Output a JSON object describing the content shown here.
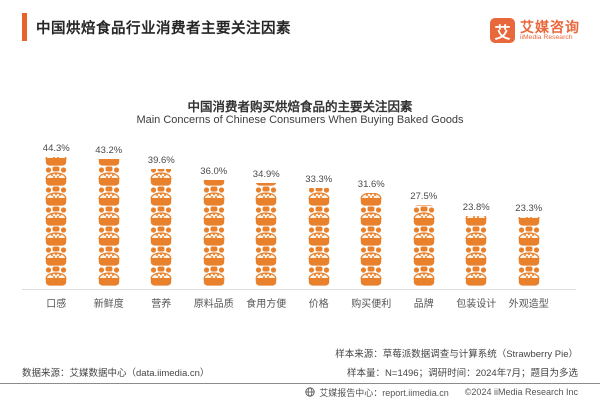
{
  "header": {
    "title": "中国烘焙食品行业消费者主要关注因素",
    "logo": {
      "glyph": "艾",
      "name_cn": "艾媒咨询",
      "name_en": "iiMedia Research"
    }
  },
  "chart_data": {
    "type": "bar",
    "style": "pictogram bar of stacked orange bread/bun icons",
    "title": "中国消费者购买烘焙食品的主要关注因素",
    "subtitle": "Main Concerns of Chinese Consumers When Buying Baked Goods",
    "categories": [
      "口感",
      "新鲜度",
      "营养",
      "原料品质",
      "食用方便",
      "价格",
      "购买便利",
      "品牌",
      "包装设计",
      "外观造型"
    ],
    "slugs": [
      "taste",
      "freshness",
      "nutrition",
      "ingredient-quality",
      "eating-convenience",
      "price",
      "purchase-convenience",
      "brand",
      "packaging-design",
      "appearance"
    ],
    "values": [
      44.3,
      43.2,
      39.6,
      36.0,
      34.9,
      33.3,
      31.6,
      27.5,
      23.8,
      23.3
    ],
    "value_labels": [
      "44.3%",
      "43.2%",
      "39.6%",
      "36.0%",
      "34.9%",
      "33.3%",
      "31.6%",
      "27.5%",
      "23.8%",
      "23.3%"
    ],
    "unit": "%",
    "xlabel": "",
    "ylabel": "",
    "ylim": [
      0,
      50
    ],
    "grid": false,
    "legend": null
  },
  "footer": {
    "data_source": "数据来源：艾媒数据中心（data.iimedia.cn）",
    "sample_source": "样本来源：草莓派数据调查与计算系统（Strawberry Pie）",
    "sample_info": "样本量：N=1496；调研时间：2024年7月；题目为多选",
    "report_center": "艾媒报告中心：report.iimedia.cn",
    "copyright": "©2024 iiMedia Research Inc"
  },
  "colors": {
    "accent_orange": "#E8622C",
    "bar_orange": "#E8802C",
    "bun_fill": "#FDF3E7",
    "logo_orange": "#E8683C",
    "text_dark": "#262626",
    "text_gray": "#555555",
    "baseline_gray": "#DCDCDC"
  }
}
